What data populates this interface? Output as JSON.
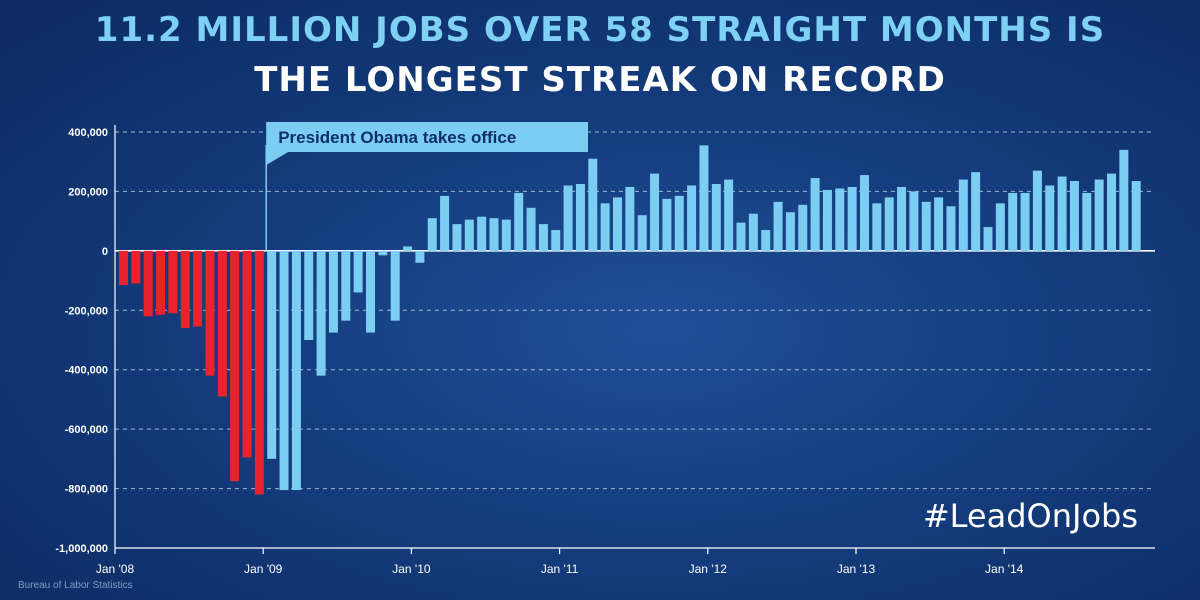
{
  "headline": {
    "line1": "11.2 MILLION JOBS OVER 58 STRAIGHT MONTHS IS",
    "line2": "THE LONGEST STREAK ON RECORD"
  },
  "hashtag": "#LeadOnJobs",
  "source": "Bureau of Labor Statistics",
  "colors": {
    "pre_obama": "#e8232e",
    "post_obama": "#7ccdf2",
    "background": "#143c7d",
    "grid": "#cfe0f5",
    "callout_bg": "#7ccdf2",
    "callout_text": "#0f2f6b"
  },
  "chart_data": {
    "type": "bar",
    "ylim": [
      -1000000,
      400000
    ],
    "yticks": [
      {
        "value": 400000,
        "label": "400,000"
      },
      {
        "value": 200000,
        "label": "200,000"
      },
      {
        "value": 0,
        "label": "0"
      },
      {
        "value": -200000,
        "label": "-200,000"
      },
      {
        "value": -400000,
        "label": "-400,000"
      },
      {
        "value": -600000,
        "label": "-600,000"
      },
      {
        "value": -800000,
        "label": "-800,000"
      },
      {
        "value": -1000000,
        "label": "-1,000,000"
      }
    ],
    "xticks": [
      {
        "month_index": 0,
        "label": "Jan '08"
      },
      {
        "month_index": 12,
        "label": "Jan '09"
      },
      {
        "month_index": 24,
        "label": "Jan '10"
      },
      {
        "month_index": 36,
        "label": "Jan '11"
      },
      {
        "month_index": 48,
        "label": "Jan  '12"
      },
      {
        "month_index": 60,
        "label": "Jan '13"
      },
      {
        "month_index": 72,
        "label": "Jan '14"
      }
    ],
    "grid": true,
    "annotation": {
      "label": "President Obama takes office",
      "month_index": 12
    },
    "series": [
      {
        "values": [
          -115000,
          -110000,
          -220000,
          -215000,
          -210000,
          -260000,
          -255000,
          -420000,
          -490000,
          -775000,
          -695000,
          -820000,
          -700000,
          -805000,
          -805000,
          -300000,
          -420000,
          -275000,
          -235000,
          -140000,
          -275000,
          -15000,
          -235000,
          15000,
          -40000,
          110000,
          185000,
          90000,
          105000,
          115000,
          110000,
          105000,
          195000,
          145000,
          90000,
          70000,
          220000,
          225000,
          310000,
          160000,
          180000,
          215000,
          120000,
          260000,
          175000,
          185000,
          220000,
          355000,
          225000,
          240000,
          95000,
          125000,
          70000,
          165000,
          130000,
          155000,
          245000,
          205000,
          210000,
          215000,
          255000,
          160000,
          180000,
          215000,
          200000,
          165000,
          180000,
          150000,
          240000,
          265000,
          80000,
          160000,
          195000,
          195000,
          270000,
          220000,
          250000,
          235000,
          195000,
          240000,
          260000,
          340000,
          235000
        ]
      }
    ]
  }
}
